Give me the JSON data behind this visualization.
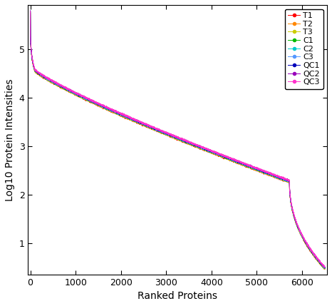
{
  "title": "",
  "xlabel": "Ranked Proteins",
  "ylabel": "Log10 Protein Intensities",
  "xlim": [
    -50,
    6550
  ],
  "ylim": [
    0.35,
    5.92
  ],
  "xticks": [
    0,
    1000,
    2000,
    3000,
    4000,
    5000,
    6000
  ],
  "yticks": [
    1,
    2,
    3,
    4,
    5
  ],
  "n_proteins": 6500,
  "series": [
    {
      "label": "T1",
      "color": "#FF0000",
      "voffset": 0.0
    },
    {
      "label": "T2",
      "color": "#FF8800",
      "voffset": 0.005
    },
    {
      "label": "T3",
      "color": "#CCCC00",
      "voffset": 0.01
    },
    {
      "label": "C1",
      "color": "#00BB00",
      "voffset": 0.015
    },
    {
      "label": "C2",
      "color": "#00CCCC",
      "voffset": 0.02
    },
    {
      "label": "C3",
      "color": "#5599FF",
      "voffset": 0.025
    },
    {
      "label": "QC1",
      "color": "#0000BB",
      "voffset": 0.03
    },
    {
      "label": "QC2",
      "color": "#9900BB",
      "voffset": 0.035
    },
    {
      "label": "QC3",
      "color": "#FF33CC",
      "voffset": 0.04
    }
  ],
  "bg_color": "#FFFFFF",
  "linewidth": 0.7,
  "markersize": 3.0,
  "curve_params": {
    "y_max": 5.76,
    "y_min": 0.46,
    "phase1_end": 0.015,
    "phase1_yend": 4.55,
    "phase2_end": 0.88,
    "phase2_yend": 2.25,
    "phase3_power": 0.45
  }
}
